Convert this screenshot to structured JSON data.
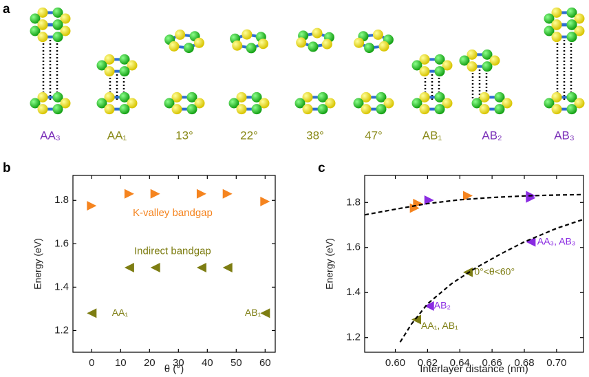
{
  "structures": {
    "label": "a",
    "items": [
      {
        "label": "AA₃",
        "color": "#7a2fb8"
      },
      {
        "label": "AA₁",
        "color": "#8a8a1a"
      },
      {
        "label": "13°",
        "color": "#8a8a1a"
      },
      {
        "label": "22°",
        "color": "#8a8a1a"
      },
      {
        "label": "38°",
        "color": "#8a8a1a"
      },
      {
        "label": "47°",
        "color": "#8a8a1a"
      },
      {
        "label": "AB₁",
        "color": "#8a8a1a"
      },
      {
        "label": "AB₂",
        "color": "#7a2fb8"
      },
      {
        "label": "AB₃",
        "color": "#7a2fb8"
      }
    ]
  },
  "chart_data": [
    {
      "type": "scatter",
      "label": "b",
      "x_label": "θ (°)",
      "y_label": "Energy (eV)",
      "xlim": [
        -6.5,
        63.5
      ],
      "xticks": [
        0,
        10,
        20,
        30,
        40,
        50,
        60
      ],
      "ylim": [
        1.1,
        1.915
      ],
      "yticks": [
        1.2,
        1.4,
        1.6,
        1.8
      ],
      "series": [
        {
          "color": "#f5841f",
          "marker": "right",
          "x": [
            0,
            13,
            22,
            38,
            47,
            60
          ],
          "values": [
            1.775,
            1.83,
            1.83,
            1.83,
            1.83,
            1.795
          ]
        },
        {
          "color": "#7d7d12",
          "marker": "left",
          "x": [
            0,
            13,
            22,
            38,
            47,
            60
          ],
          "values": [
            1.28,
            1.49,
            1.49,
            1.49,
            1.49,
            1.28
          ]
        }
      ],
      "annotations": [
        {
          "text": "K-valley bandgap",
          "color": "#f5841f",
          "x": 28,
          "y": 1.74
        },
        {
          "text": "Indirect bandgap",
          "color": "#7d7d12",
          "x": 28,
          "y": 1.565
        },
        {
          "text": "AA₁",
          "color": "#7d7d12",
          "x": 7,
          "y": 1.28
        },
        {
          "text": "AB₁",
          "color": "#7d7d12",
          "x": 53,
          "y": 1.28
        }
      ]
    },
    {
      "type": "scatter",
      "label": "c",
      "x_label": "Interlayer distance (nm)",
      "y_label": "Energy (eV)",
      "xlim": [
        0.581,
        0.7167
      ],
      "xticks": [
        {
          "value": 0.6,
          "label": "0.60"
        },
        0.62,
        0.64,
        0.66,
        0.68,
        {
          "value": 0.7,
          "label": "0.70"
        }
      ],
      "ylim": [
        1.135,
        1.92
      ],
      "yticks": [
        1.2,
        1.4,
        1.6,
        1.8
      ],
      "series": [
        {
          "color": "#f5841f",
          "marker": "right",
          "x": [
            0.612,
            0.614,
            0.645
          ],
          "values": [
            1.775,
            1.795,
            1.83
          ]
        },
        {
          "color": "#8a2be2",
          "marker": "right",
          "x": [
            0.621,
            0.684,
            0.684
          ],
          "values": [
            1.81,
            1.83,
            1.82
          ]
        },
        {
          "color": "#8a2be2",
          "marker": "left",
          "x": [
            0.621,
            0.684
          ],
          "values": [
            1.34,
            1.625
          ]
        },
        {
          "color": "#7d7d12",
          "marker": "left",
          "x": [
            0.613,
            0.645
          ],
          "values": [
            1.28,
            1.49
          ]
        },
        {
          "color": "#000000",
          "marker": "dashed",
          "x": [
            0.581,
            0.6,
            0.62,
            0.64,
            0.66,
            0.68,
            0.7,
            0.7167
          ],
          "values": [
            1.745,
            1.77,
            1.795,
            1.812,
            1.822,
            1.829,
            1.833,
            1.835
          ]
        },
        {
          "color": "#000000",
          "marker": "dashed",
          "x": [
            0.603,
            0.61,
            0.62,
            0.635,
            0.65,
            0.665,
            0.68,
            0.7,
            0.7167
          ],
          "values": [
            1.18,
            1.26,
            1.35,
            1.44,
            1.51,
            1.57,
            1.625,
            1.685,
            1.725
          ]
        }
      ],
      "annotations": [
        {
          "text": "AA₃, AB₃",
          "color": "#8a2be2",
          "x": 0.688,
          "y": 1.625
        },
        {
          "text": "0°<θ<60°",
          "color": "#7d7d12",
          "x": 0.649,
          "y": 1.49
        },
        {
          "text": "AB₂",
          "color": "#8a2be2",
          "x": 0.624,
          "y": 1.34
        },
        {
          "text": "AA₁, AB₁",
          "color": "#7d7d12",
          "x": 0.616,
          "y": 1.25
        }
      ]
    }
  ]
}
